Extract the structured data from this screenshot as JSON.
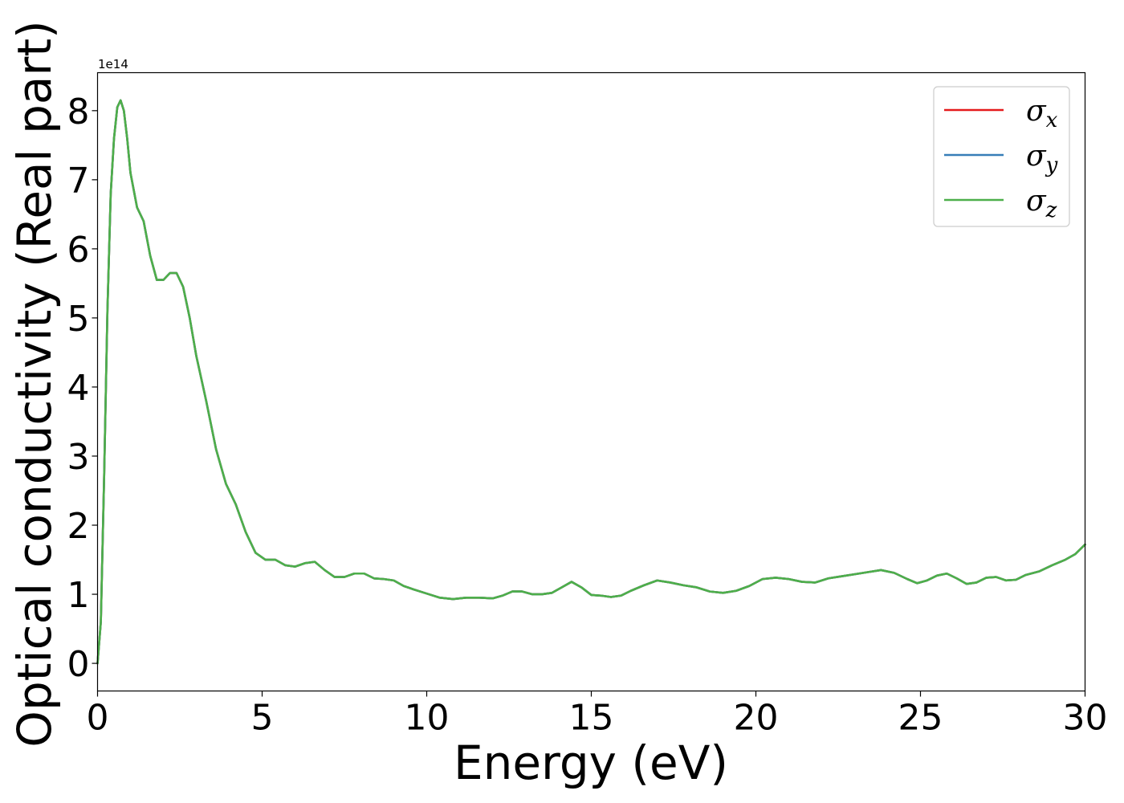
{
  "chart_data": {
    "type": "line",
    "xlabel": "Energy (eV)",
    "ylabel": "Optical conductivity (Real part)",
    "offset_text": "1e14",
    "xlim": [
      0,
      30
    ],
    "ylim": [
      -0.4,
      8.55
    ],
    "x_ticks": [
      "0",
      "5",
      "10",
      "15",
      "20",
      "25",
      "30"
    ],
    "y_ticks": [
      "0",
      "1",
      "2",
      "3",
      "4",
      "5",
      "6",
      "7",
      "8"
    ],
    "grid": false,
    "legend_position": "top-right",
    "x": [
      0,
      0.1,
      0.2,
      0.3,
      0.4,
      0.5,
      0.6,
      0.7,
      0.8,
      0.9,
      1.0,
      1.2,
      1.4,
      1.6,
      1.8,
      2.0,
      2.2,
      2.4,
      2.6,
      2.8,
      3.0,
      3.3,
      3.6,
      3.9,
      4.2,
      4.5,
      4.8,
      5.1,
      5.4,
      5.7,
      6.0,
      6.3,
      6.6,
      6.9,
      7.2,
      7.5,
      7.8,
      8.1,
      8.4,
      8.7,
      9.0,
      9.3,
      9.6,
      10.0,
      10.4,
      10.8,
      11.2,
      11.6,
      12.0,
      12.3,
      12.6,
      12.9,
      13.2,
      13.5,
      13.8,
      14.1,
      14.4,
      14.7,
      15.0,
      15.3,
      15.6,
      15.9,
      16.2,
      16.6,
      17.0,
      17.4,
      17.8,
      18.2,
      18.6,
      19.0,
      19.4,
      19.8,
      20.2,
      20.6,
      21.0,
      21.4,
      21.8,
      22.2,
      22.6,
      23.0,
      23.4,
      23.8,
      24.2,
      24.6,
      24.9,
      25.2,
      25.5,
      25.8,
      26.1,
      26.4,
      26.7,
      27.0,
      27.3,
      27.6,
      27.9,
      28.2,
      28.6,
      29.0,
      29.4,
      29.7,
      30.0
    ],
    "series": [
      {
        "name": "σx",
        "color": "#e41a1c",
        "values": [
          0.0,
          0.6,
          2.7,
          5.1,
          6.8,
          7.6,
          8.05,
          8.15,
          8.0,
          7.6,
          7.1,
          6.6,
          6.4,
          5.9,
          5.55,
          5.55,
          5.65,
          5.65,
          5.45,
          5.0,
          4.45,
          3.8,
          3.1,
          2.6,
          2.3,
          1.9,
          1.6,
          1.5,
          1.5,
          1.42,
          1.4,
          1.45,
          1.47,
          1.35,
          1.25,
          1.25,
          1.3,
          1.3,
          1.23,
          1.22,
          1.2,
          1.12,
          1.07,
          1.01,
          0.95,
          0.93,
          0.95,
          0.95,
          0.94,
          0.98,
          1.04,
          1.04,
          1.0,
          1.0,
          1.02,
          1.1,
          1.18,
          1.1,
          0.99,
          0.98,
          0.96,
          0.98,
          1.05,
          1.13,
          1.2,
          1.17,
          1.13,
          1.1,
          1.04,
          1.02,
          1.05,
          1.12,
          1.22,
          1.24,
          1.22,
          1.18,
          1.17,
          1.23,
          1.26,
          1.29,
          1.32,
          1.35,
          1.31,
          1.22,
          1.16,
          1.2,
          1.27,
          1.3,
          1.23,
          1.15,
          1.17,
          1.24,
          1.25,
          1.2,
          1.21,
          1.28,
          1.33,
          1.42,
          1.5,
          1.58,
          1.72
        ]
      },
      {
        "name": "σy",
        "color": "#377eb8",
        "values": [
          0.0,
          0.6,
          2.7,
          5.1,
          6.8,
          7.6,
          8.05,
          8.15,
          8.0,
          7.6,
          7.1,
          6.6,
          6.4,
          5.9,
          5.55,
          5.55,
          5.65,
          5.65,
          5.45,
          5.0,
          4.45,
          3.8,
          3.1,
          2.6,
          2.3,
          1.9,
          1.6,
          1.5,
          1.5,
          1.42,
          1.4,
          1.45,
          1.47,
          1.35,
          1.25,
          1.25,
          1.3,
          1.3,
          1.23,
          1.22,
          1.2,
          1.12,
          1.07,
          1.01,
          0.95,
          0.93,
          0.95,
          0.95,
          0.94,
          0.98,
          1.04,
          1.04,
          1.0,
          1.0,
          1.02,
          1.1,
          1.18,
          1.1,
          0.99,
          0.98,
          0.96,
          0.98,
          1.05,
          1.13,
          1.2,
          1.17,
          1.13,
          1.1,
          1.04,
          1.02,
          1.05,
          1.12,
          1.22,
          1.24,
          1.22,
          1.18,
          1.17,
          1.23,
          1.26,
          1.29,
          1.32,
          1.35,
          1.31,
          1.22,
          1.16,
          1.2,
          1.27,
          1.3,
          1.23,
          1.15,
          1.17,
          1.24,
          1.25,
          1.2,
          1.21,
          1.28,
          1.33,
          1.42,
          1.5,
          1.58,
          1.72
        ]
      },
      {
        "name": "σz",
        "color": "#4daf4a",
        "values": [
          0.0,
          0.6,
          2.7,
          5.1,
          6.8,
          7.6,
          8.05,
          8.15,
          8.0,
          7.6,
          7.1,
          6.6,
          6.4,
          5.9,
          5.55,
          5.55,
          5.65,
          5.65,
          5.45,
          5.0,
          4.45,
          3.8,
          3.1,
          2.6,
          2.3,
          1.9,
          1.6,
          1.5,
          1.5,
          1.42,
          1.4,
          1.45,
          1.47,
          1.35,
          1.25,
          1.25,
          1.3,
          1.3,
          1.23,
          1.22,
          1.2,
          1.12,
          1.07,
          1.01,
          0.95,
          0.93,
          0.95,
          0.95,
          0.94,
          0.98,
          1.04,
          1.04,
          1.0,
          1.0,
          1.02,
          1.1,
          1.18,
          1.1,
          0.99,
          0.98,
          0.96,
          0.98,
          1.05,
          1.13,
          1.2,
          1.17,
          1.13,
          1.1,
          1.04,
          1.02,
          1.05,
          1.12,
          1.22,
          1.24,
          1.22,
          1.18,
          1.17,
          1.23,
          1.26,
          1.29,
          1.32,
          1.35,
          1.31,
          1.22,
          1.16,
          1.2,
          1.27,
          1.3,
          1.23,
          1.15,
          1.17,
          1.24,
          1.25,
          1.2,
          1.21,
          1.28,
          1.33,
          1.42,
          1.5,
          1.58,
          1.72
        ]
      }
    ],
    "legend": [
      {
        "symbol": "σ",
        "sub": "x",
        "color": "#e41a1c"
      },
      {
        "symbol": "σ",
        "sub": "y",
        "color": "#377eb8"
      },
      {
        "symbol": "σ",
        "sub": "z",
        "color": "#4daf4a"
      }
    ]
  }
}
